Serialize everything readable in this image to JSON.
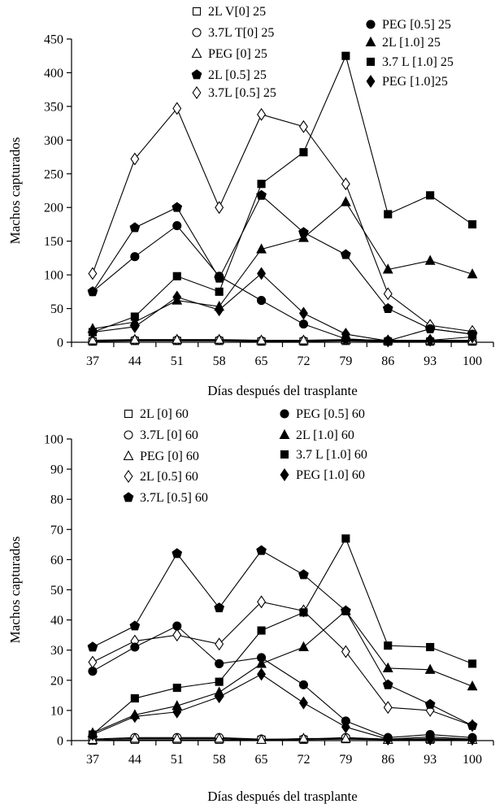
{
  "chart_data": [
    {
      "type": "line",
      "title": "",
      "xlabel": "Días después del trasplante",
      "ylabel": "Machos capturados",
      "ylim": [
        0,
        450
      ],
      "yticks": [
        0,
        50,
        100,
        150,
        200,
        250,
        300,
        350,
        400,
        450
      ],
      "categories": [
        "37",
        "44",
        "51",
        "58",
        "65",
        "72",
        "79",
        "86",
        "93",
        "100"
      ],
      "grid": false,
      "legend_position": "top, two columns",
      "series": [
        {
          "name": "2L V[0] 25",
          "marker": "square-open",
          "values": [
            1,
            2,
            2,
            2,
            1,
            1,
            2,
            1,
            1,
            1
          ]
        },
        {
          "name": "3.7L T[0] 25",
          "marker": "circle-open",
          "values": [
            2,
            3,
            3,
            3,
            2,
            2,
            3,
            2,
            2,
            2
          ]
        },
        {
          "name": "PEG [0] 25",
          "marker": "triangle-open",
          "values": [
            3,
            4,
            4,
            4,
            3,
            3,
            4,
            3,
            3,
            3
          ]
        },
        {
          "name": "2L [0.5] 25",
          "marker": "pentagon-filled",
          "values": [
            75,
            170,
            200,
            95,
            218,
            163,
            130,
            50,
            20,
            12
          ]
        },
        {
          "name": "3.7L [0.5] 25",
          "marker": "diamond-open",
          "values": [
            102,
            272,
            347,
            200,
            338,
            320,
            235,
            72,
            25,
            16
          ]
        },
        {
          "name": "PEG [0.5] 25",
          "marker": "circle-filled",
          "values": [
            75,
            127,
            173,
            98,
            62,
            27,
            5,
            2,
            20,
            12
          ]
        },
        {
          "name": "2L [1.0] 25",
          "marker": "triangle-filled",
          "values": [
            20,
            30,
            62,
            53,
            138,
            155,
            208,
            108,
            121,
            101
          ]
        },
        {
          "name": "3.7 L [1.0] 25",
          "marker": "square-filled",
          "values": [
            15,
            38,
            98,
            75,
            235,
            282,
            425,
            190,
            218,
            175
          ]
        },
        {
          "name": "PEG [1.0]25",
          "marker": "diamond-filled",
          "values": [
            15,
            23,
            67,
            48,
            102,
            43,
            12,
            2,
            3,
            8
          ]
        }
      ]
    },
    {
      "type": "line",
      "title": "",
      "xlabel": "Días después del trasplante",
      "ylabel": "Machos capturados",
      "ylim": [
        0,
        100
      ],
      "yticks": [
        0,
        10,
        20,
        30,
        40,
        50,
        60,
        70,
        80,
        90,
        100
      ],
      "categories": [
        "37",
        "44",
        "51",
        "58",
        "65",
        "72",
        "79",
        "86",
        "93",
        "100"
      ],
      "grid": false,
      "legend_position": "top, two columns",
      "series": [
        {
          "name": "2L [0] 60",
          "marker": "square-open",
          "values": [
            0,
            0.3,
            0.3,
            0.3,
            0.3,
            0.3,
            0.5,
            0.3,
            0.3,
            0.3
          ]
        },
        {
          "name": "3.7L [0] 60",
          "marker": "circle-open",
          "values": [
            0.5,
            1,
            1,
            1,
            0.5,
            0.5,
            1,
            0.5,
            1.2,
            0.5
          ]
        },
        {
          "name": "PEG [0] 60",
          "marker": "triangle-open",
          "values": [
            0.3,
            0.7,
            0.7,
            0.7,
            0.3,
            0.7,
            0.7,
            0.3,
            0.7,
            0.3
          ]
        },
        {
          "name": "2L [0.5] 60",
          "marker": "diamond-open",
          "values": [
            26,
            33,
            35,
            32,
            46,
            43,
            29.5,
            11,
            10,
            5
          ]
        },
        {
          "name": "3.7L [0.5] 60",
          "marker": "pentagon-filled",
          "values": [
            31,
            38,
            62,
            44,
            63,
            55,
            43,
            18.5,
            12,
            5
          ]
        },
        {
          "name": "PEG [0.5] 60",
          "marker": "circle-filled",
          "values": [
            23,
            31,
            38,
            25.5,
            27.5,
            18.5,
            6.5,
            1,
            2,
            1
          ]
        },
        {
          "name": "2L [1.0] 60",
          "marker": "triangle-filled",
          "values": [
            2.5,
            8.5,
            11.5,
            16,
            25.5,
            31,
            43,
            24,
            23.5,
            18
          ]
        },
        {
          "name": "3.7 L [1.0] 60",
          "marker": "square-filled",
          "values": [
            2,
            14,
            17.5,
            19.5,
            36.5,
            42.5,
            67,
            31.5,
            31,
            25.5
          ]
        },
        {
          "name": "PEG [1.0] 60",
          "marker": "diamond-filled",
          "values": [
            2,
            8,
            9.5,
            14.5,
            22,
            12.5,
            4.5,
            0.5,
            0.5,
            0.5
          ]
        }
      ]
    }
  ]
}
